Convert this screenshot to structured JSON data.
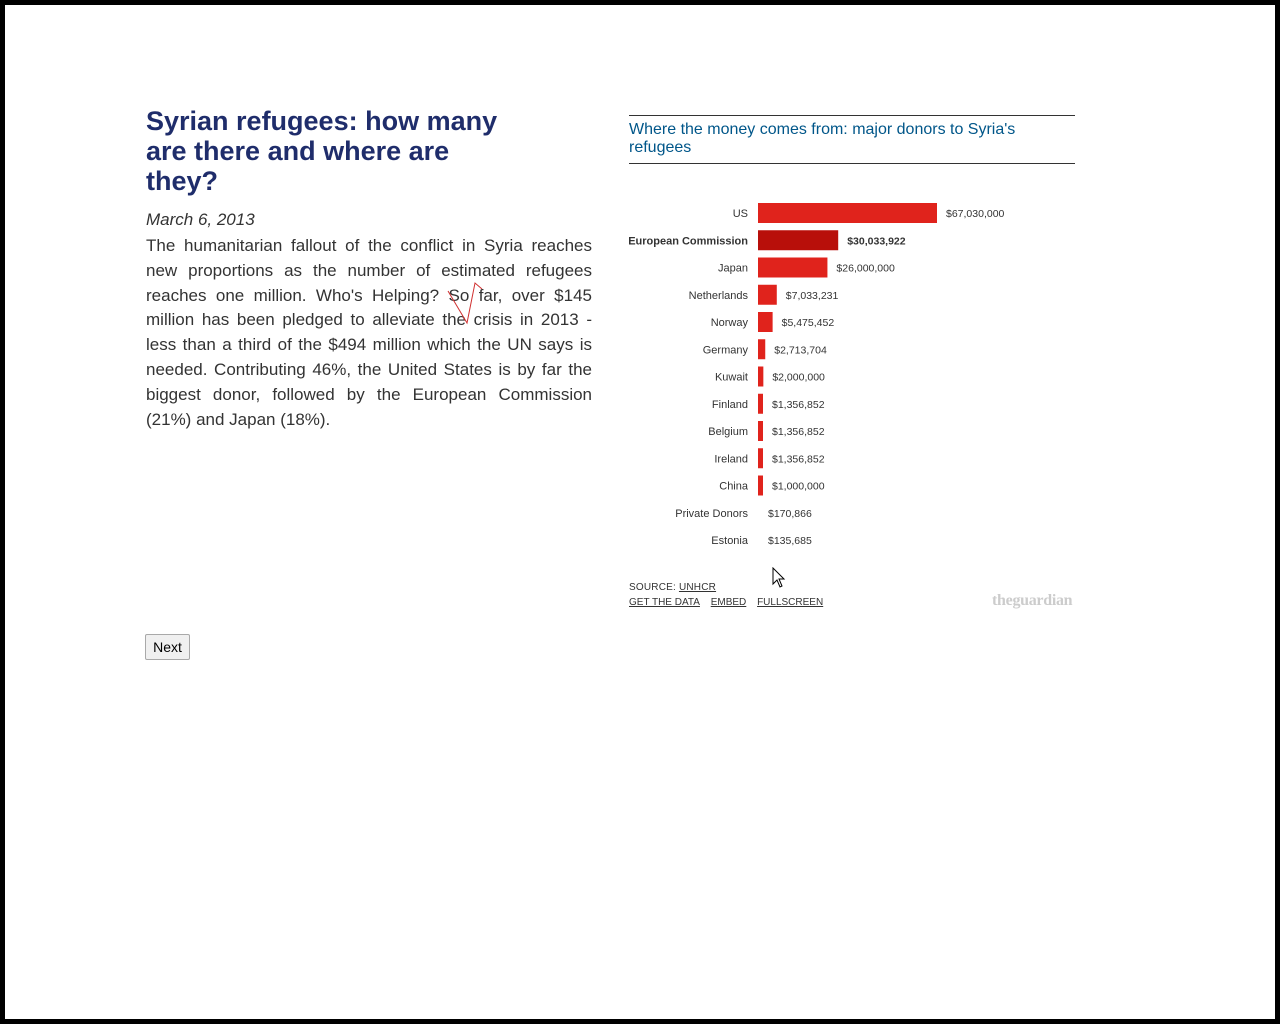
{
  "article": {
    "headline": "Syrian refugees: how many are there and where are they?",
    "date": "March 6, 2013",
    "body": "The humanitarian fallout of the conflict in Syria reaches new proportions as the number of estimated refugees reaches one million. Who's Helping? So far, over $145 million has been pledged to alleviate the crisis in 2013 - less than a third of the $494 million which the UN says is needed. Contributing 46%, the United States is by far the biggest donor, followed by the European Commission (21%) and Japan (18%).",
    "next_label": "Next"
  },
  "chart": {
    "title": "Where the money comes from: major donors to Syria's refugees",
    "source_prefix": "SOURCE: ",
    "source_link": "UNHCR",
    "links": [
      "GET THE DATA",
      "EMBED",
      "FULLSCREEN"
    ],
    "logo_the": "the",
    "logo_guardian": "guardian",
    "colors": {
      "bar": "#e0231c",
      "bar_highlight": "#b80f0a"
    }
  },
  "chart_data": {
    "type": "bar",
    "orientation": "horizontal",
    "title": "Where the money comes from: major donors to Syria's refugees",
    "categories": [
      "US",
      "European Commission",
      "Japan",
      "Netherlands",
      "Norway",
      "Germany",
      "Kuwait",
      "Finland",
      "Belgium",
      "Ireland",
      "China",
      "Private Donors",
      "Estonia"
    ],
    "values": [
      67030000,
      30033922,
      26000000,
      7033231,
      5475452,
      2713704,
      2000000,
      1356852,
      1356852,
      1356852,
      1000000,
      170866,
      135685
    ],
    "value_labels": [
      "$67,030,000",
      "$30,033,922",
      "$26,000,000",
      "$7,033,231",
      "$5,475,452",
      "$2,713,704",
      "$2,000,000",
      "$1,356,852",
      "$1,356,852",
      "$1,356,852",
      "$1,000,000",
      "$170,866",
      "$135,685"
    ],
    "highlighted": "European Commission"
  }
}
